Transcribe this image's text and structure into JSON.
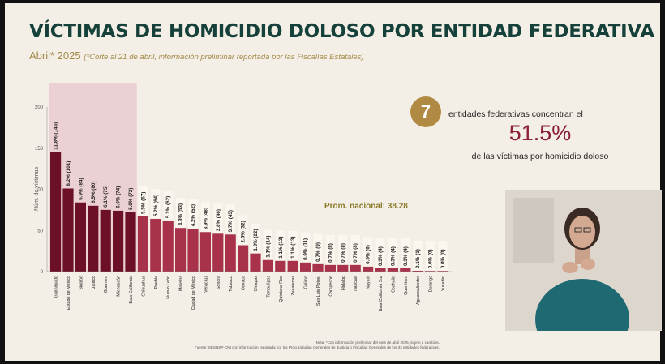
{
  "header": {
    "title": "VÍCTIMAS DE HOMICIDIO DOLOSO POR ENTIDAD FEDERATIVA",
    "subtitle_period": "Abril* 2025",
    "subtitle_note": "(*Corte al 21 de abril, información preliminar reportada por las Fiscalías Estatales)"
  },
  "callout": {
    "count": "7",
    "line1": "entidades federativas concentran el",
    "percent": "51.5%",
    "line2": "de las víctimas por homicidio doloso"
  },
  "footnote": {
    "line1": "Nota: *Con información preliminar del mes de abril 2025, sujeto a cambios.",
    "line2": "Fuente: SESNSP-CNI con información reportada por las Procuradurías Generales de Justicia o Fiscalías Generales de los 32 entidades federativas."
  },
  "colors": {
    "dark_bar": "#6b1027",
    "light_bar": "#a8324a",
    "highlight": "#ecd1d4",
    "accent": "#b08a43",
    "title": "#15413a"
  },
  "icons": {
    "callout_badge": "circle-badge",
    "interpreter": "sign-language-interpreter"
  },
  "chart_data": {
    "type": "bar",
    "title": "",
    "xlabel": "",
    "ylabel": "Núm. de víctimas",
    "ylim": [
      0,
      200
    ],
    "yticks": [
      0,
      50,
      100,
      150,
      200
    ],
    "average": {
      "label": "Prom. nacional: 38.28",
      "value": 38.28
    },
    "highlight_count": 7,
    "categories": [
      "Guanajuato",
      "Estado de México",
      "Sinaloa",
      "Jalisco",
      "Guerrero",
      "Michoacán",
      "Baja California",
      "Chihuahua",
      "Puebla",
      "Nuevo León",
      "Morelos",
      "Ciudad de México",
      "Veracruz",
      "Sonora",
      "Tabasco",
      "Oaxaca",
      "Chiapas",
      "Tamaulipas",
      "Quintana Roo",
      "Zacatecas",
      "Colima",
      "San Luis Potosí",
      "Campeche",
      "Hidalgo",
      "Tlaxcala",
      "Nayarit",
      "Baja California Sur",
      "Coahuila",
      "Querétaro",
      "Aguascalientes",
      "Durango",
      "Yucatán"
    ],
    "values": [
      145,
      101,
      84,
      80,
      75,
      74,
      72,
      67,
      64,
      62,
      53,
      52,
      48,
      46,
      45,
      32,
      22,
      14,
      13,
      13,
      11,
      9,
      8,
      8,
      8,
      6,
      4,
      4,
      4,
      1,
      0,
      0
    ],
    "labels": [
      "11.8% (145)",
      "8.2% (101)",
      "6.9% (84)",
      "6.5% (80)",
      "6.1% (75)",
      "6.0% (74)",
      "5.9% (72)",
      "5.5% (67)",
      "5.2% (64)",
      "5.1% (62)",
      "4.3% (53)",
      "4.2% (52)",
      "3.9% (48)",
      "3.8% (46)",
      "3.7% (45)",
      "2.6% (32)",
      "1.8% (22)",
      "1.1% (14)",
      "1.1% (13)",
      "1.1% (13)",
      "0.9% (11)",
      "0.7% (9)",
      "0.7% (8)",
      "0.7% (8)",
      "0.7% (8)",
      "0.5% (6)",
      "0.3% (4)",
      "0.3% (4)",
      "0.3% (4)",
      "0.1% (1)",
      "0.0% (0)",
      "0.0% (0)"
    ]
  }
}
